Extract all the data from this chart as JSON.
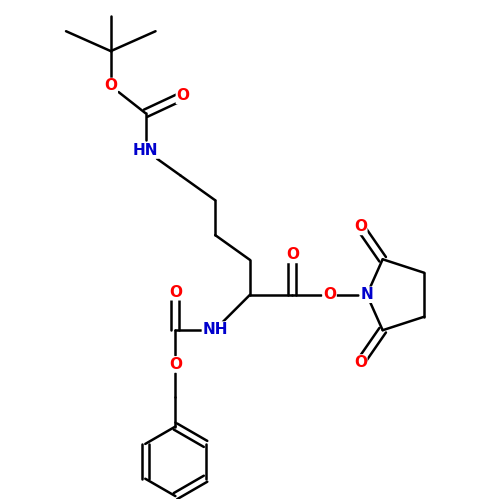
{
  "bg_color": "#ffffff",
  "bond_color": "#000000",
  "atom_colors": {
    "O": "#ff0000",
    "N": "#0000cd",
    "C": "#000000"
  },
  "bond_width": 1.8,
  "font_size_atom": 11
}
